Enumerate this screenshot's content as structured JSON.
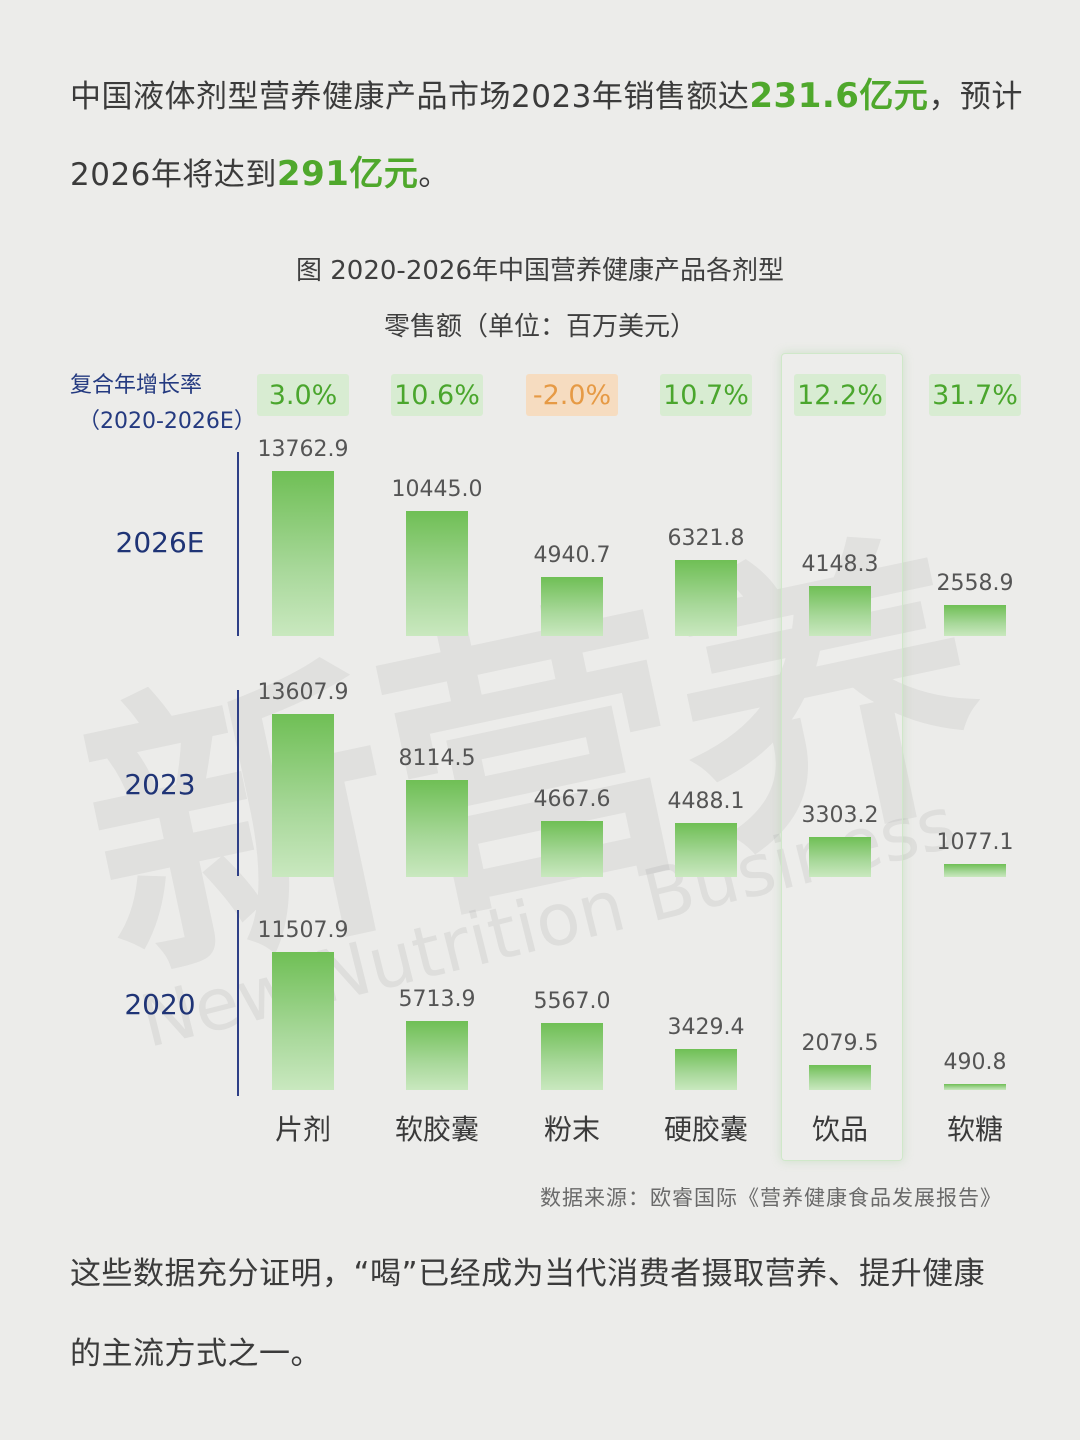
{
  "intro": {
    "line1_before": "中国液体剂型营养健康产品市场2023年销售额达",
    "line1_highlight": "231.6亿元",
    "line1_after": "，预计",
    "line2_before": "2026年将达到",
    "line2_highlight": "291亿元",
    "line2_after": "。"
  },
  "figure": {
    "title_line1": "图  2020-2026年中国营养健康产品各剂型",
    "title_line2": "零售额（单位：百万美元）",
    "cagr_label_line1": "复合年增长率",
    "cagr_label_line2": "（2020-2026E）",
    "source": "数据来源：欧睿国际《营养健康食品发展报告》"
  },
  "watermark": {
    "text_cn": "新营养",
    "text_en": "New Nutrition Business"
  },
  "outro": {
    "line1": "这些数据充分证明，“喝”已经成为当代消费者摄取营养、提升健康",
    "line2": "的主流方式之一。"
  },
  "colors": {
    "bar": "#8fcc78",
    "highlight_text": "#4fa82c",
    "cagr_positive_bg": "#d8ecd2",
    "cagr_negative_bg": "#f6dcc0",
    "year_label": "#1f3476"
  },
  "chart_data": {
    "type": "bar",
    "title": "2020-2026年中国营养健康产品各剂型零售额（单位：百万美元）",
    "categories": [
      "片剂",
      "软胶囊",
      "粉末",
      "硬胶囊",
      "饮品",
      "软糖"
    ],
    "cagr": [
      "3.0%",
      "10.6%",
      "-2.0%",
      "10.7%",
      "12.2%",
      "31.7%"
    ],
    "highlighted_category": "饮品",
    "series": [
      {
        "name": "2026E",
        "values": [
          13762.9,
          10445.0,
          4940.7,
          6321.8,
          4148.3,
          2558.9
        ]
      },
      {
        "name": "2023",
        "values": [
          13607.9,
          8114.5,
          4667.6,
          4488.1,
          3303.2,
          1077.1
        ]
      },
      {
        "name": "2020",
        "values": [
          11507.9,
          5713.9,
          5567.0,
          3429.4,
          2079.5,
          490.8
        ]
      }
    ],
    "value_labels": [
      [
        "13762.9",
        "10445.0",
        "4940.7",
        "6321.8",
        "4148.3",
        "2558.9"
      ],
      [
        "13607.9",
        "8114.5",
        "4667.6",
        "4488.1",
        "3303.2",
        "1077.1"
      ],
      [
        "11507.9",
        "5713.9",
        "5567.0",
        "3429.4",
        "2079.5",
        "490.8"
      ]
    ],
    "grid": false,
    "legend": "none"
  }
}
